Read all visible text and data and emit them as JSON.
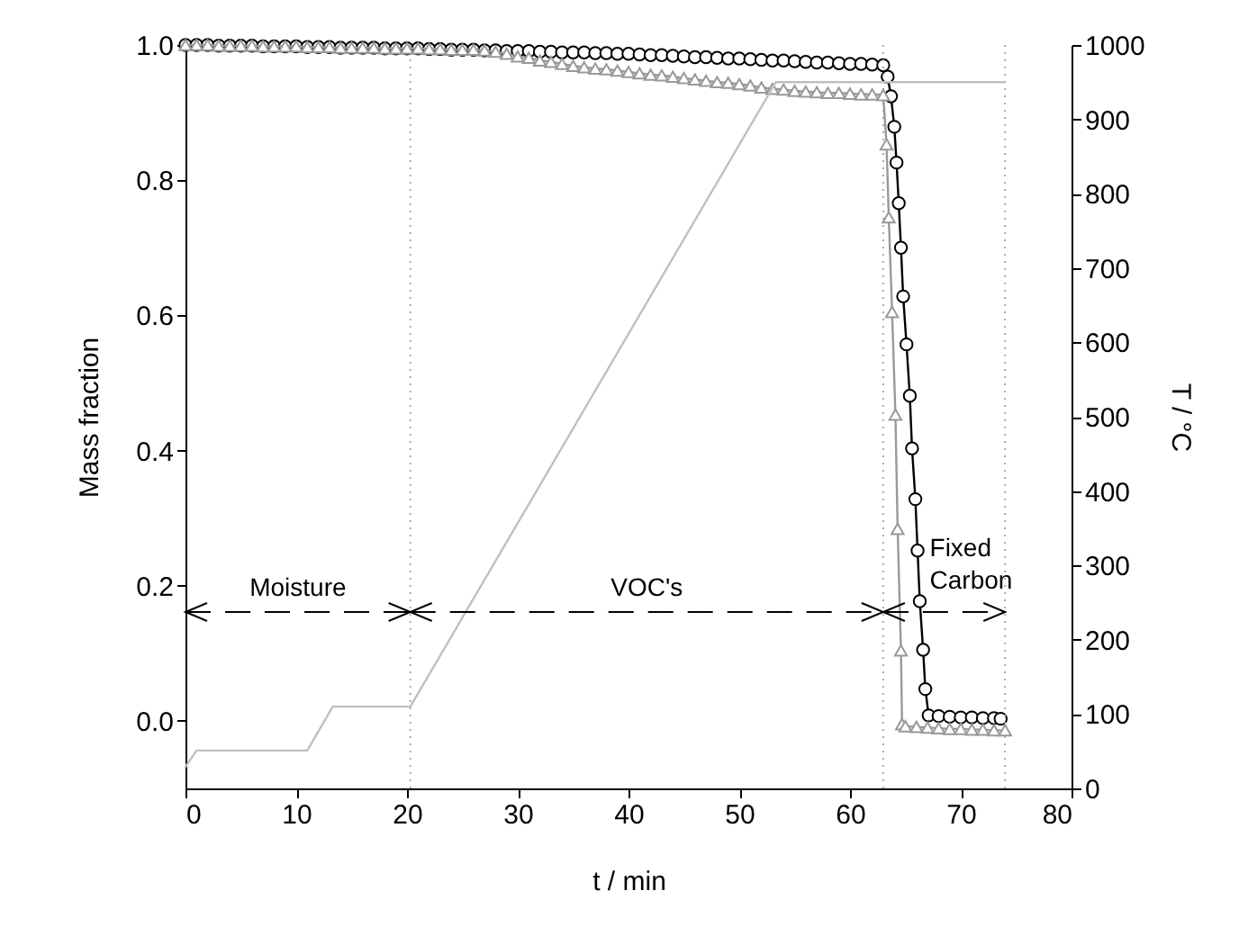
{
  "chart_data": {
    "type": "line",
    "xlabel": "t / min",
    "ylabel": "Mass fraction",
    "y2label": "T / °C",
    "xlim": [
      0,
      80
    ],
    "xticks": [
      0,
      10,
      20,
      30,
      40,
      50,
      60,
      70,
      80
    ],
    "ylim": [
      -0.1,
      1.0
    ],
    "yticks": [
      {
        "value": 0,
        "label": "0.0"
      },
      0.2,
      0.4,
      0.6,
      0.8,
      {
        "value": 1,
        "label": "1.0"
      }
    ],
    "y2lim": [
      0,
      1000
    ],
    "y2ticks": [
      0,
      100,
      200,
      300,
      400,
      500,
      600,
      700,
      800,
      900,
      1000
    ],
    "grid": false,
    "series": [
      {
        "color": "#000000",
        "marker": "circle",
        "x": [
          0,
          1,
          2,
          3,
          4,
          5,
          6,
          7,
          8,
          9,
          10,
          11,
          12,
          13,
          14,
          15,
          16,
          17,
          18,
          19,
          20,
          21,
          22,
          23,
          24,
          25,
          26,
          27,
          28,
          29,
          30,
          31,
          32,
          33,
          34,
          35,
          36,
          37,
          38,
          39,
          40,
          41,
          42,
          43,
          44,
          45,
          46,
          47,
          48,
          49,
          50,
          51,
          52,
          53,
          54,
          55,
          56,
          57,
          58,
          59,
          60,
          61,
          62,
          63,
          63.4,
          63.7,
          64.0,
          64.2,
          64.4,
          64.6,
          64.8,
          65.1,
          65.4,
          65.6,
          65.9,
          66.1,
          66.3,
          66.6,
          66.8,
          67.1,
          68,
          69,
          70,
          71,
          72,
          73,
          73.6
        ],
        "values": [
          1.0,
          1.0,
          1.0,
          0.999,
          0.999,
          0.999,
          0.999,
          0.998,
          0.998,
          0.998,
          0.998,
          0.997,
          0.997,
          0.997,
          0.996,
          0.996,
          0.996,
          0.996,
          0.995,
          0.995,
          0.995,
          0.995,
          0.994,
          0.994,
          0.993,
          0.993,
          0.993,
          0.992,
          0.992,
          0.991,
          0.991,
          0.991,
          0.99,
          0.99,
          0.989,
          0.989,
          0.989,
          0.988,
          0.988,
          0.987,
          0.987,
          0.986,
          0.985,
          0.985,
          0.984,
          0.983,
          0.982,
          0.982,
          0.981,
          0.98,
          0.98,
          0.979,
          0.978,
          0.977,
          0.977,
          0.976,
          0.975,
          0.974,
          0.974,
          0.973,
          0.972,
          0.972,
          0.971,
          0.97,
          0.953,
          0.924,
          0.879,
          0.826,
          0.766,
          0.7,
          0.628,
          0.557,
          0.481,
          0.403,
          0.328,
          0.252,
          0.177,
          0.105,
          0.047,
          0.008,
          0.007,
          0.006,
          0.005,
          0.005,
          0.004,
          0.004,
          0.003
        ]
      },
      {
        "color": "#999999",
        "marker": "triangle",
        "x": [
          0,
          1,
          2,
          3,
          4,
          5,
          6,
          7,
          8,
          9,
          10,
          11,
          12,
          13,
          14,
          15,
          16,
          17,
          18,
          19,
          20,
          21,
          22,
          23,
          24,
          25,
          26,
          27,
          28,
          29,
          30,
          31,
          32,
          33,
          34,
          35,
          36,
          37,
          38,
          39,
          40,
          41,
          42,
          43,
          44,
          45,
          46,
          47,
          48,
          49,
          50,
          51,
          52,
          53,
          54,
          55,
          56,
          57,
          58,
          59,
          60,
          61,
          62,
          63,
          63.3,
          63.5,
          63.8,
          64.1,
          64.3,
          64.6,
          64.7,
          65,
          66,
          67,
          68,
          69,
          70,
          71,
          72,
          73,
          74
        ],
        "values": [
          1.0,
          1.0,
          1.0,
          0.999,
          0.999,
          0.999,
          0.999,
          0.998,
          0.998,
          0.998,
          0.998,
          0.997,
          0.997,
          0.997,
          0.996,
          0.996,
          0.996,
          0.996,
          0.995,
          0.995,
          0.995,
          0.995,
          0.994,
          0.994,
          0.993,
          0.993,
          0.993,
          0.992,
          0.99,
          0.987,
          0.983,
          0.981,
          0.977,
          0.975,
          0.972,
          0.969,
          0.967,
          0.965,
          0.964,
          0.962,
          0.96,
          0.958,
          0.956,
          0.955,
          0.953,
          0.951,
          0.949,
          0.947,
          0.945,
          0.944,
          0.942,
          0.94,
          0.937,
          0.935,
          0.934,
          0.932,
          0.931,
          0.93,
          0.929,
          0.929,
          0.928,
          0.927,
          0.927,
          0.926,
          0.853,
          0.745,
          0.605,
          0.453,
          0.284,
          0.104,
          -0.005,
          -0.008,
          -0.009,
          -0.01,
          -0.011,
          -0.012,
          -0.012,
          -0.013,
          -0.013,
          -0.014,
          -0.014
        ]
      },
      {
        "color": "#c0c0c0",
        "marker": "none",
        "axis": "y2",
        "x": [
          0,
          1,
          11,
          13.3,
          20.3,
          53.3,
          74
        ],
        "values": [
          29,
          51,
          51,
          110,
          110,
          950,
          950
        ]
      }
    ],
    "ref_lines": [
      {
        "axis": "x",
        "value": 20.3,
        "color": "#aaaaaa",
        "line_style": "dotted"
      },
      {
        "axis": "x",
        "value": 63,
        "color": "#aaaaaa",
        "line_style": "dotted"
      },
      {
        "axis": "x",
        "value": 74,
        "color": "#aaaaaa",
        "line_style": "dotted"
      }
    ],
    "annotations": [
      "Moisture",
      "VOC's",
      "Fixed Carbon"
    ]
  }
}
